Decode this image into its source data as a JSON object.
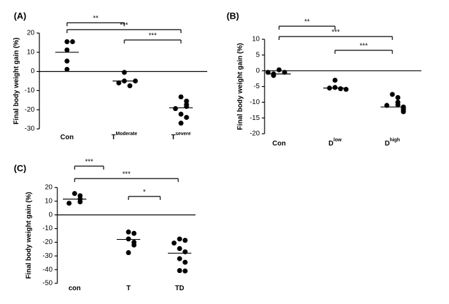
{
  "chart_data": [
    {
      "type": "strip",
      "panel_label": "(A)",
      "ylabel": "Final body weight gain (%)",
      "categories": [
        {
          "text": "Con"
        },
        {
          "text": "T",
          "sup": "Moderate"
        },
        {
          "text": "T",
          "sup": "severe"
        }
      ],
      "values": [
        [
          15.5,
          15.5,
          11.2,
          5.4,
          1.1
        ],
        [
          -0.5,
          -5,
          -7.5,
          -6,
          -5
        ],
        [
          -13.3,
          -15.5,
          -17.3,
          -18.3,
          -19.4,
          -22.3,
          -24,
          -27
        ]
      ],
      "medians": [
        10,
        -5,
        -19
      ],
      "ylim": [
        -30,
        20
      ],
      "yticks": [
        20,
        10,
        0,
        -10,
        -20,
        -30
      ],
      "brackets": [
        {
          "from": 0,
          "to": 1,
          "label": "**"
        },
        {
          "from": 0,
          "to": 2,
          "label": "***"
        },
        {
          "from": 1,
          "to": 2,
          "label": "***"
        }
      ],
      "color": "#000000"
    },
    {
      "type": "strip",
      "panel_label": "(B)",
      "ylabel": "Final body weight gain (%)",
      "categories": [
        {
          "text": "Con"
        },
        {
          "text": "D",
          "sup": "low"
        },
        {
          "text": "D",
          "sup": "high"
        }
      ],
      "values": [
        [
          0.3,
          -0.5,
          -1,
          -1.5,
          -0.5
        ],
        [
          -3,
          -5.3,
          -5.7,
          -5.5,
          -5.9
        ],
        [
          -7.5,
          -8.5,
          -10,
          -10.8,
          -11,
          -11.5,
          -12,
          -12.5,
          -13
        ]
      ],
      "medians": [
        -1,
        -5.5,
        -11.5
      ],
      "ylim": [
        -20,
        10
      ],
      "yticks": [
        10,
        5,
        0,
        -5,
        -10,
        -15,
        -20
      ],
      "brackets": [
        {
          "from": 0,
          "to": 1,
          "label": "**"
        },
        {
          "from": 0,
          "to": 2,
          "label": "***"
        },
        {
          "from": 1,
          "to": 2,
          "label": "***"
        }
      ],
      "color": "#000000"
    },
    {
      "type": "strip",
      "panel_label": "(C)",
      "ylabel": "Final body weight gain (%)",
      "categories": [
        {
          "text": "con"
        },
        {
          "text": "T"
        },
        {
          "text": "TD"
        }
      ],
      "values": [
        [
          15.6,
          14,
          11.6,
          9.5,
          8.5
        ],
        [
          -12.5,
          -13.5,
          -17.6,
          -20,
          -22,
          -27.6
        ],
        [
          -17.6,
          -18.6,
          -20.6,
          -24.6,
          -27,
          -32,
          -34.6,
          -40.7,
          -41
        ]
      ],
      "medians": [
        11.5,
        -18,
        -28
      ],
      "ylim": [
        -50,
        20
      ],
      "yticks": [
        20,
        10,
        0,
        -10,
        -20,
        -30,
        -40,
        -50
      ],
      "brackets": [
        {
          "from": 0,
          "to": 1,
          "label": "***"
        },
        {
          "from": 0,
          "to": 2,
          "label": "***"
        },
        {
          "from": 1,
          "to": 2,
          "label": "*"
        }
      ],
      "color": "#000000"
    }
  ]
}
